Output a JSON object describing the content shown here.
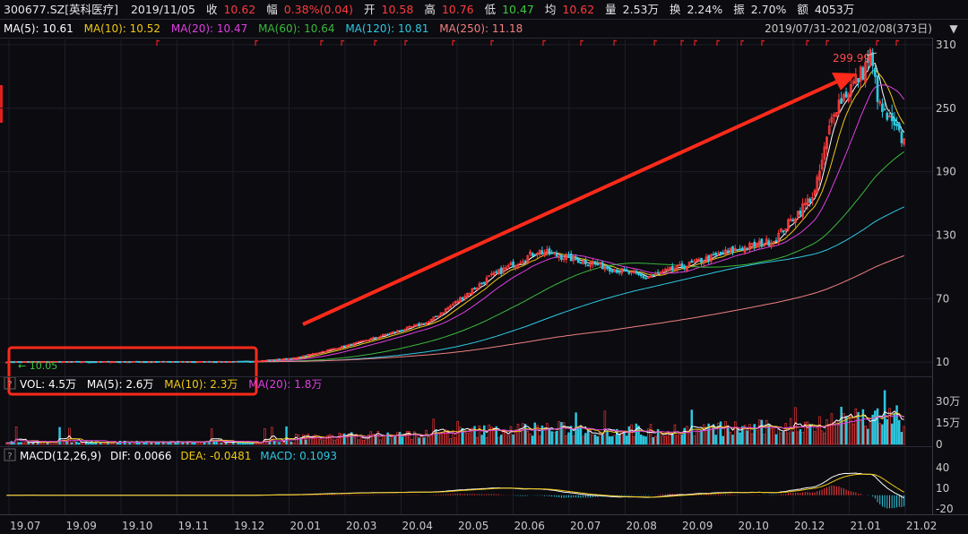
{
  "quote_bar": {
    "code": "300677.SZ[英科医疗]",
    "date": "2019/11/05",
    "close_label": "收",
    "close": "10.62",
    "change_label": "幅",
    "change": "0.38%(0.04)",
    "open_label": "开",
    "open": "10.58",
    "high_label": "高",
    "high": "10.76",
    "low_label": "低",
    "low": "10.47",
    "avg_label": "均",
    "avg": "10.62",
    "volume_label": "量",
    "volume": "2.53万",
    "turnover_label": "换",
    "turnover": "2.24%",
    "amplitude_label": "振",
    "amplitude": "2.70%",
    "amount_label": "额",
    "amount": "4053万"
  },
  "ma_legend": [
    {
      "label": "MA(5): 10.61",
      "color": "#ffffff"
    },
    {
      "label": "MA(10): 10.52",
      "color": "#f0c814"
    },
    {
      "label": "MA(20): 10.47",
      "color": "#e040e0"
    },
    {
      "label": "MA(60): 10.64",
      "color": "#3cb83c"
    },
    {
      "label": "MA(120): 10.81",
      "color": "#2ec8e0"
    },
    {
      "label": "MA(250): 11.18",
      "color": "#f08080"
    }
  ],
  "range_label": "2019/07/31-2021/02/08(373日)",
  "range_arrow": "▼",
  "annotations": {
    "peak_label": "299.99",
    "start_label": "← 10.05"
  },
  "vol_legend": {
    "help": "?",
    "items": [
      {
        "label": "VOL: 4.5万",
        "color": "#ffffff"
      },
      {
        "label": "MA(5): 2.6万",
        "color": "#ffffff"
      },
      {
        "label": "MA(10): 2.3万",
        "color": "#f0c814"
      },
      {
        "label": "MA(20): 1.8万",
        "color": "#e040e0"
      }
    ]
  },
  "macd_legend": {
    "help": "?",
    "items": [
      {
        "label": "MACD(12,26,9)",
        "color": "#ffffff"
      },
      {
        "label": "DIF: 0.0066",
        "color": "#ffffff"
      },
      {
        "label": "DEA: -0.0481",
        "color": "#f0c814"
      },
      {
        "label": "MACD: 0.1093",
        "color": "#2ec8e0"
      }
    ]
  },
  "colors": {
    "up": "#ff3b3b",
    "down": "#2ec8e0",
    "grid": "#1e1e2a",
    "axis_text": "#c9c9c9",
    "background": "#0b0b10",
    "arrow": "#ff2a1a",
    "box": "#ff2a1a"
  },
  "chart_data": [
    {
      "type": "candlestick",
      "title": "300677.SZ[英科医疗]",
      "x_ticks": [
        "19.07",
        "19.09",
        "19.10",
        "19.11",
        "19.12",
        "20.01",
        "20.03",
        "20.04",
        "20.05",
        "20.06",
        "20.07",
        "20.08",
        "20.09",
        "20.10",
        "20.12",
        "21.01",
        "21.02"
      ],
      "y_ticks": [
        310,
        250,
        190,
        130,
        70,
        10
      ],
      "ylim": [
        0,
        315
      ],
      "trading_days": 373,
      "price_path_days": [
        0,
        100,
        120,
        145,
        175,
        200,
        220,
        240,
        265,
        280,
        300,
        318,
        335,
        343,
        355,
        358,
        362,
        373
      ],
      "price_path_close": [
        10.3,
        10.5,
        14,
        28,
        48,
        90,
        115,
        105,
        90,
        100,
        115,
        125,
        170,
        250,
        285,
        299.99,
        250,
        215
      ],
      "high": 299.99,
      "low": 10.05,
      "ma_series": [
        "MA(5)",
        "MA(10)",
        "MA(20)",
        "MA(60)",
        "MA(120)",
        "MA(250)"
      ]
    },
    {
      "type": "bar",
      "title": "VOL",
      "y_ticks": [
        "30万",
        "15万",
        "0"
      ],
      "ylim": [
        0,
        35
      ],
      "unit": "万"
    },
    {
      "type": "bar",
      "title": "MACD(12,26,9)",
      "y_ticks": [
        40,
        10,
        -20
      ],
      "ylim": [
        -25,
        45
      ]
    }
  ]
}
